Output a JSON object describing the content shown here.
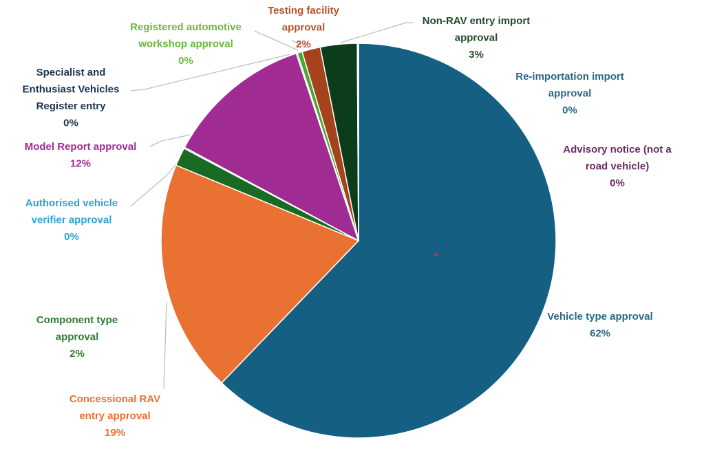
{
  "chart_data": {
    "type": "pie",
    "title": "",
    "slices": [
      {
        "name": "Vehicle type approval",
        "value": 62,
        "label": "62%",
        "color": "#156082"
      },
      {
        "name": "Concessional RAV entry approval",
        "value": 19,
        "label": "19%",
        "color": "#E97132"
      },
      {
        "name": "Component type approval",
        "value": 1.5,
        "label": "2%",
        "color": "#196B24"
      },
      {
        "name": "Authorised vehicle verifier approval",
        "value": 0.1,
        "label": "0%",
        "color": "#0F9ED5"
      },
      {
        "name": "Model Report approval",
        "value": 12,
        "label": "12%",
        "color": "#A02B93"
      },
      {
        "name": "Specialist and Enthusiast Vehicles Register entry",
        "value": 0.1,
        "label": "0%",
        "color": "#0E2841"
      },
      {
        "name": "Registered automotive workshop approval",
        "value": 0.4,
        "label": "0%",
        "color": "#4EA72E"
      },
      {
        "name": "Testing facility approval",
        "value": 1.5,
        "label": "2%",
        "color": "#A5431C"
      },
      {
        "name": "Non-RAV entry import approval",
        "value": 3,
        "label": "3%",
        "color": "#0B3D1A"
      },
      {
        "name": "Re-importation import approval",
        "value": 0.05,
        "label": "0%",
        "color": "#156082"
      },
      {
        "name": "Advisory notice (not a road vehicle)",
        "value": 0.05,
        "label": "0%",
        "color": "#7A2068"
      }
    ]
  },
  "labels": [
    {
      "lines": [
        "Vehicle type approval"
      ],
      "pct": "62%",
      "color": "#2A6887"
    },
    {
      "lines": [
        "Concessional RAV",
        "entry approval"
      ],
      "pct": "19%",
      "color": "#E97132"
    },
    {
      "lines": [
        "Component type",
        "approval"
      ],
      "pct": "2%",
      "color": "#2E7D32"
    },
    {
      "lines": [
        "Authorised vehicle",
        "verifier approval"
      ],
      "pct": "0%",
      "color": "#2BA3D6"
    },
    {
      "lines": [
        "Model Report approval"
      ],
      "pct": "12%",
      "color": "#A02B93"
    },
    {
      "lines": [
        "Specialist and",
        "Enthusiast Vehicles",
        "Register entry"
      ],
      "pct": "0%",
      "color": "#1B3550"
    },
    {
      "lines": [
        "Registered automotive",
        "workshop approval"
      ],
      "pct": "0%",
      "color": "#6BB83E"
    },
    {
      "lines": [
        "Testing facility",
        "approval"
      ],
      "pct": "2%",
      "color": "#B5532A"
    },
    {
      "lines": [
        "Non-RAV entry import",
        "approval"
      ],
      "pct": "3%",
      "color": "#1F4D2A"
    },
    {
      "lines": [
        "Re-importation import",
        "approval"
      ],
      "pct": "0%",
      "color": "#2A6887"
    },
    {
      "lines": [
        "Advisory notice (not a",
        "road vehicle)"
      ],
      "pct": "0%",
      "color": "#6E2A62"
    }
  ]
}
